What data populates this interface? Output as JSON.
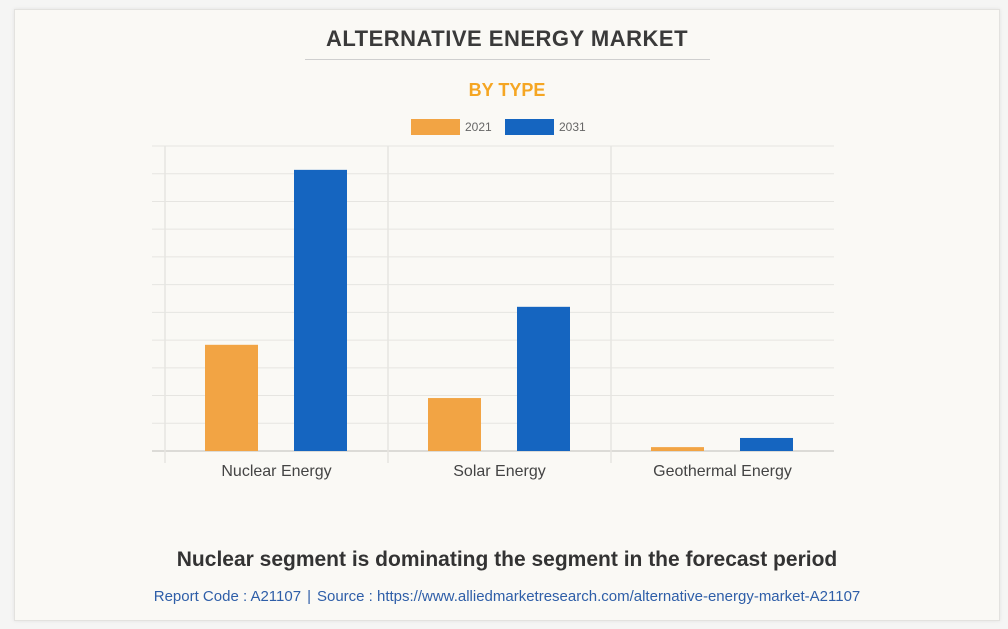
{
  "header": {
    "title": "ALTERNATIVE ENERGY MARKET",
    "subtitle": "BY TYPE"
  },
  "colors": {
    "series_2021": "#f2a444",
    "series_2031": "#1565c0",
    "subtitle": "#f5a623",
    "grid": "#e6e5e1",
    "footer_link": "#2e5ea8"
  },
  "chart_data": {
    "type": "bar",
    "title": "ALTERNATIVE ENERGY MARKET",
    "subtitle": "BY TYPE",
    "categories": [
      "Nuclear Energy",
      "Solar Energy",
      "Geothermal Energy"
    ],
    "series": [
      {
        "name": "2021",
        "values": [
          3.83,
          1.91,
          0.14
        ]
      },
      {
        "name": "2031",
        "values": [
          10.14,
          5.2,
          0.47
        ]
      }
    ],
    "xlabel": "",
    "ylabel": "",
    "y_units": "gridline intervals (axis unlabeled)",
    "ylim": [
      0,
      11
    ],
    "grid": true,
    "y_tick_labels_visible": false,
    "legend_position": "top-center"
  },
  "footer": {
    "caption": "Nuclear segment is dominating the segment in the forecast period",
    "report_code": "Report Code : A21107",
    "separator": "|",
    "source": "Source : https://www.alliedmarketresearch.com/alternative-energy-market-A21107"
  }
}
